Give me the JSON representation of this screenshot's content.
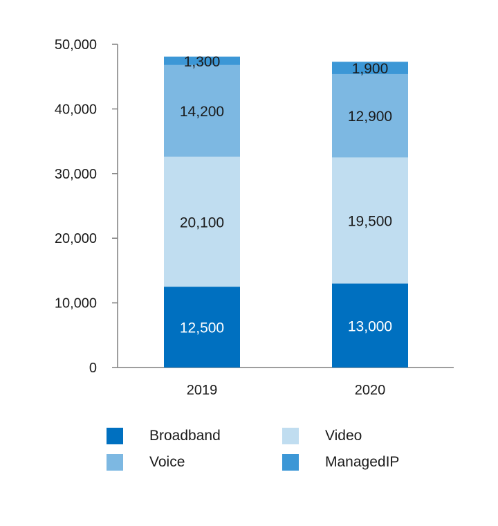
{
  "chart_data": {
    "type": "bar",
    "stacked": true,
    "title": "",
    "xlabel": "",
    "ylabel": "",
    "categories": [
      "2019",
      "2020"
    ],
    "series": [
      {
        "name": "Broadband",
        "color": "#0070c0",
        "label_color": "#ffffff",
        "values": [
          12500,
          13000
        ]
      },
      {
        "name": "Video",
        "color": "#c0ddf0",
        "label_color": "#1a1a1a",
        "values": [
          20100,
          19500
        ]
      },
      {
        "name": "Voice",
        "color": "#7db8e2",
        "label_color": "#1a1a1a",
        "values": [
          14200,
          12900
        ]
      },
      {
        "name": "ManagedIP",
        "color": "#3c97d6",
        "label_color": "#1a1a1a",
        "values": [
          1300,
          1900
        ]
      }
    ],
    "value_labels": [
      [
        "12,500",
        "13,000"
      ],
      [
        "20,100",
        "19,500"
      ],
      [
        "14,200",
        "12,900"
      ],
      [
        "1,300",
        "1,900"
      ]
    ],
    "ylim": [
      0,
      50000
    ],
    "yticks": [
      0,
      10000,
      20000,
      30000,
      40000,
      50000
    ],
    "ytick_labels": [
      "0",
      "10,000",
      "20,000",
      "30,000",
      "40,000",
      "50,000"
    ],
    "grid": false,
    "legend_position": "bottom"
  }
}
